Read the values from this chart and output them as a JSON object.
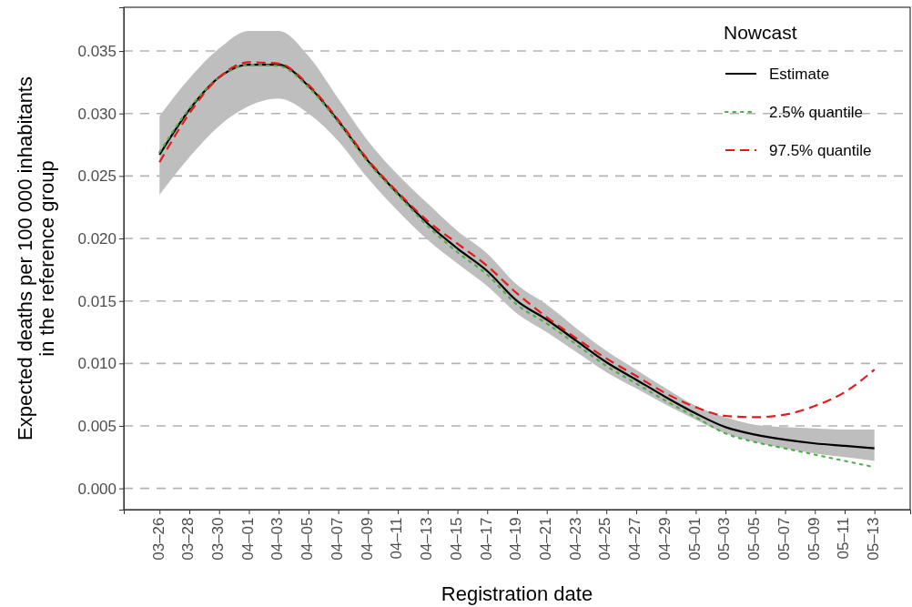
{
  "chart_data": {
    "type": "line",
    "xlabel": "Registration date",
    "ylabel": "Expected deaths per 100 000 inhabitants\nin the reference group",
    "legend_title": "Nowcast",
    "legend": "top right",
    "grid": "y",
    "marker": "none",
    "categories": [
      "03–26",
      "03–28",
      "03–30",
      "04–01",
      "04–03",
      "04–05",
      "04–07",
      "04–09",
      "04–11",
      "04–13",
      "04–15",
      "04–17",
      "04–19",
      "04–21",
      "04–23",
      "04–25",
      "04–27",
      "04–29",
      "05–01",
      "05–03",
      "05–05",
      "05–07",
      "05–09",
      "05–11",
      "05–13"
    ],
    "ylim": [
      -0.0017,
      0.0385
    ],
    "yticks": [
      {
        "value": 0,
        "label": "0.000"
      },
      {
        "value": 0.005,
        "label": "0.005"
      },
      {
        "value": 0.01,
        "label": "0.010"
      },
      {
        "value": 0.015,
        "label": "0.015"
      },
      {
        "value": 0.02,
        "label": "0.020"
      },
      {
        "value": 0.025,
        "label": "0.025"
      },
      {
        "value": 0.03,
        "label": "0.030"
      },
      {
        "value": 0.035,
        "label": "0.035"
      }
    ],
    "series": [
      {
        "name": "Estimate",
        "color": "#000000",
        "line_style": "solid",
        "values": [
          0.0267,
          0.0303,
          0.0329,
          0.0339,
          0.0339,
          0.0322,
          0.0294,
          0.0262,
          0.0236,
          0.0212,
          0.0192,
          0.0174,
          0.015,
          0.0135,
          0.0118,
          0.0101,
          0.0087,
          0.0073,
          0.006,
          0.0049,
          0.0043,
          0.0039,
          0.0036,
          0.0034,
          0.0032
        ],
        "lower": [
          0.0235,
          0.0265,
          0.029,
          0.0306,
          0.0312,
          0.03,
          0.0278,
          0.0248,
          0.0222,
          0.0199,
          0.018,
          0.0162,
          0.014,
          0.0125,
          0.0109,
          0.0093,
          0.008,
          0.0067,
          0.0055,
          0.0044,
          0.0037,
          0.0032,
          0.0028,
          0.0025,
          0.0022
        ],
        "upper": [
          0.0298,
          0.0328,
          0.0352,
          0.0366,
          0.0366,
          0.0346,
          0.0312,
          0.0278,
          0.0251,
          0.0228,
          0.0206,
          0.0188,
          0.0163,
          0.0147,
          0.0128,
          0.011,
          0.0095,
          0.008,
          0.0066,
          0.0057,
          0.0051,
          0.0049,
          0.0048,
          0.0047,
          0.0047
        ]
      },
      {
        "name": "2.5% quantile",
        "color": "#4daf4a",
        "line_style": "dotted",
        "values": [
          0.0269,
          0.0304,
          0.0329,
          0.0339,
          0.0338,
          0.0321,
          0.0293,
          0.0261,
          0.0235,
          0.021,
          0.0189,
          0.0171,
          0.0147,
          0.0132,
          0.0115,
          0.0098,
          0.0084,
          0.007,
          0.0057,
          0.0044,
          0.0037,
          0.0032,
          0.0027,
          0.0022,
          0.0017
        ]
      },
      {
        "name": "97.5% quantile",
        "color": "#e41a1c",
        "line_style": "dashed",
        "values": [
          0.0261,
          0.03,
          0.0329,
          0.0341,
          0.034,
          0.0323,
          0.0295,
          0.0263,
          0.0237,
          0.0214,
          0.0196,
          0.0178,
          0.0156,
          0.0137,
          0.012,
          0.0104,
          0.009,
          0.0076,
          0.0065,
          0.0058,
          0.0057,
          0.0059,
          0.0066,
          0.0077,
          0.0095
        ]
      }
    ]
  }
}
